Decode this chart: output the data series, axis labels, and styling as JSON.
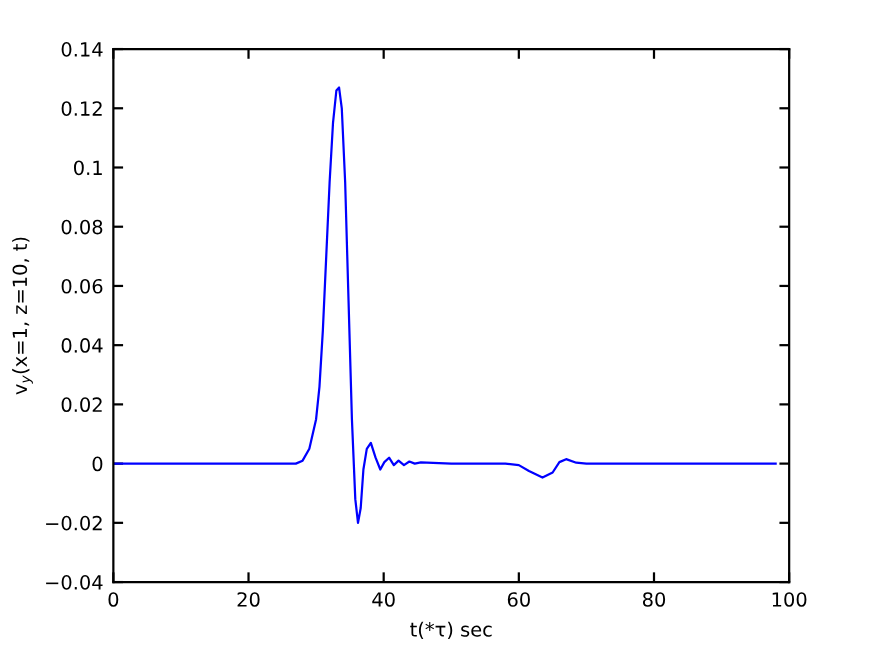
{
  "chart_data": {
    "type": "line",
    "xlabel": "t(*τ) sec",
    "ylabel": "v$_{y}$(x=1, z=10, t)",
    "xlim": [
      0,
      100
    ],
    "ylim": [
      -0.04,
      0.14
    ],
    "xticks": [
      0,
      20,
      40,
      60,
      80,
      100
    ],
    "yticks": [
      -0.04,
      -0.02,
      0,
      0.02,
      0.04,
      0.06,
      0.08,
      0.1,
      0.12,
      0.14
    ],
    "series": [
      {
        "color": "#0000ff",
        "x": [
          0,
          20,
          27,
          28,
          29,
          30,
          30.5,
          31,
          31.5,
          32,
          32.5,
          33,
          33.4,
          33.8,
          34.3,
          34.8,
          35.3,
          35.8,
          36.2,
          36.6,
          37,
          37.5,
          38.1,
          38.8,
          39.5,
          40.1,
          40.8,
          41.5,
          42.2,
          43,
          43.8,
          44.6,
          45.5,
          50,
          58,
          60,
          61.5,
          63.5,
          65,
          66,
          67,
          68.5,
          70,
          75,
          80,
          98
        ],
        "values": [
          0,
          0,
          0,
          0.001,
          0.005,
          0.015,
          0.026,
          0.045,
          0.07,
          0.095,
          0.115,
          0.126,
          0.127,
          0.12,
          0.095,
          0.055,
          0.015,
          -0.012,
          -0.02,
          -0.015,
          -0.002,
          0.005,
          0.007,
          0.002,
          -0.002,
          0.0005,
          0.002,
          -0.0005,
          0.001,
          -0.0005,
          0.0007,
          0,
          0.0004,
          0,
          0,
          -0.0005,
          -0.0025,
          -0.0047,
          -0.003,
          0.0005,
          0.0015,
          0.0003,
          0,
          0,
          0,
          0
        ]
      }
    ]
  }
}
